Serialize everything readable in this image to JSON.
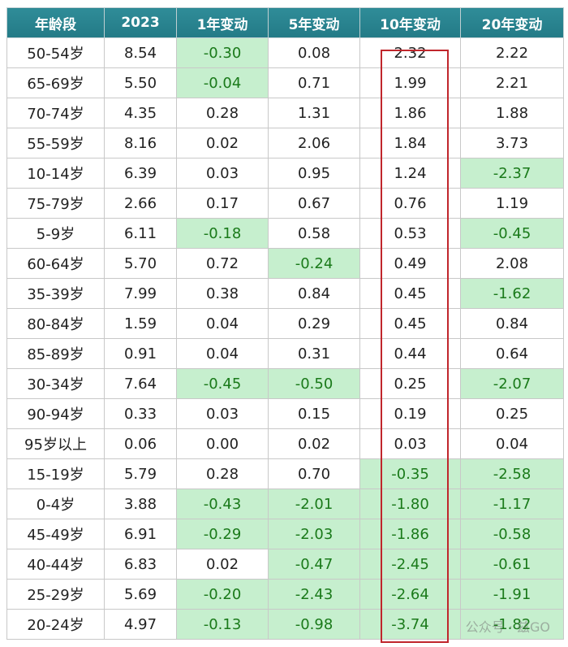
{
  "chart_data": {
    "type": "table",
    "columns": [
      "年龄段",
      "2023",
      "1年变动",
      "5年变动",
      "10年变动",
      "20年变动"
    ],
    "rows": [
      [
        "50-54岁",
        "8.54",
        "-0.30",
        "0.08",
        "2.32",
        "2.22"
      ],
      [
        "65-69岁",
        "5.50",
        "-0.04",
        "0.71",
        "1.99",
        "2.21"
      ],
      [
        "70-74岁",
        "4.35",
        "0.28",
        "1.31",
        "1.86",
        "1.88"
      ],
      [
        "55-59岁",
        "8.16",
        "0.02",
        "2.06",
        "1.84",
        "3.73"
      ],
      [
        "10-14岁",
        "6.39",
        "0.03",
        "0.95",
        "1.24",
        "-2.37"
      ],
      [
        "75-79岁",
        "2.66",
        "0.17",
        "0.67",
        "0.76",
        "1.19"
      ],
      [
        "5-9岁",
        "6.11",
        "-0.18",
        "0.58",
        "0.53",
        "-0.45"
      ],
      [
        "60-64岁",
        "5.70",
        "0.72",
        "-0.24",
        "0.49",
        "2.08"
      ],
      [
        "35-39岁",
        "7.99",
        "0.38",
        "0.84",
        "0.45",
        "-1.62"
      ],
      [
        "80-84岁",
        "1.59",
        "0.04",
        "0.29",
        "0.45",
        "0.84"
      ],
      [
        "85-89岁",
        "0.91",
        "0.04",
        "0.31",
        "0.44",
        "0.64"
      ],
      [
        "30-34岁",
        "7.64",
        "-0.45",
        "-0.50",
        "0.25",
        "-2.07"
      ],
      [
        "90-94岁",
        "0.33",
        "0.03",
        "0.15",
        "0.19",
        "0.25"
      ],
      [
        "95岁以上",
        "0.06",
        "0.00",
        "0.02",
        "0.03",
        "0.04"
      ],
      [
        "15-19岁",
        "5.79",
        "0.28",
        "0.70",
        "-0.35",
        "-2.58"
      ],
      [
        "0-4岁",
        "3.88",
        "-0.43",
        "-2.01",
        "-1.80",
        "-1.17"
      ],
      [
        "45-49岁",
        "6.91",
        "-0.29",
        "-2.03",
        "-1.86",
        "-0.58"
      ],
      [
        "40-44岁",
        "6.83",
        "0.02",
        "-0.47",
        "-2.45",
        "-0.61"
      ],
      [
        "25-29岁",
        "5.69",
        "-0.20",
        "-2.43",
        "-2.64",
        "-1.91"
      ],
      [
        "20-24岁",
        "4.97",
        "-0.13",
        "-0.98",
        "-3.74",
        "-1.82"
      ]
    ],
    "highlighted_column": "10年变动",
    "negative_cell_color": "#c6efce",
    "negative_text_color": "#1a7a1a",
    "header_color": "#2a8490",
    "highlight_border_color": "#c0262c"
  },
  "watermark": "公众号 · 兹GO"
}
